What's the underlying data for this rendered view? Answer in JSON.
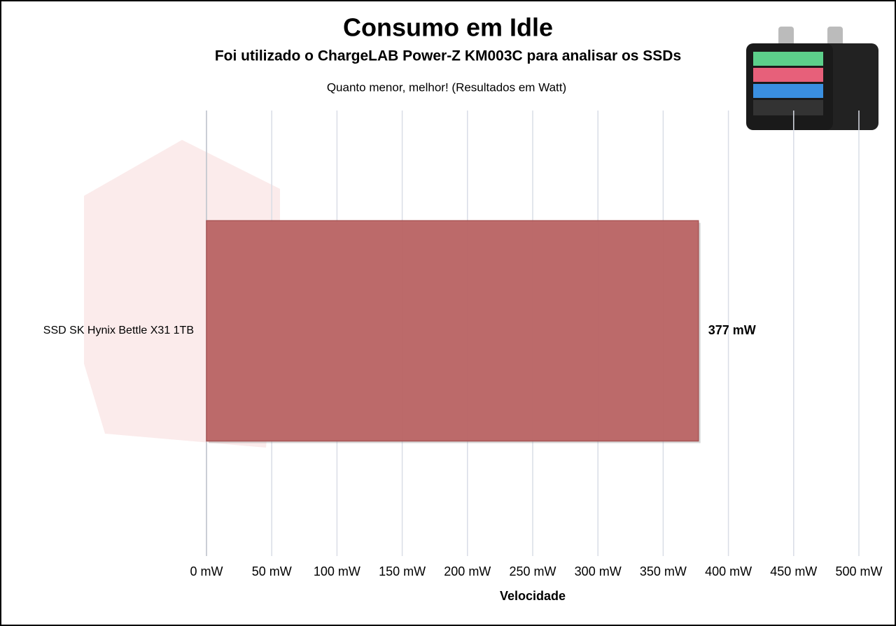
{
  "chart_data": {
    "type": "barh",
    "title": "Consumo em Idle",
    "subtitle": "Foi utilizado o ChargeLAB Power-Z KM003C para analisar os SSDs",
    "note": "Quanto menor, melhor! (Resultados em Watt)",
    "xlabel": "Velocidade",
    "categories": [
      "SSD SK Hynix Bettle  X31 1TB"
    ],
    "values": [
      377
    ],
    "value_labels": [
      "377 mW"
    ],
    "color": "#bb6565",
    "xlim": [
      0,
      500
    ],
    "xticks": [
      {
        "value": 0,
        "label": "0 mW"
      },
      {
        "value": 50,
        "label": "50 mW"
      },
      {
        "value": 100,
        "label": "100 mW"
      },
      {
        "value": 150,
        "label": "150 mW"
      },
      {
        "value": 200,
        "label": "200 mW"
      },
      {
        "value": 250,
        "label": "250 mW"
      },
      {
        "value": 300,
        "label": "300 mW"
      },
      {
        "value": 350,
        "label": "350 mW"
      },
      {
        "value": 400,
        "label": "400 mW"
      },
      {
        "value": 450,
        "label": "450 mW"
      },
      {
        "value": 500,
        "label": "500 mW"
      }
    ],
    "grid": true
  }
}
